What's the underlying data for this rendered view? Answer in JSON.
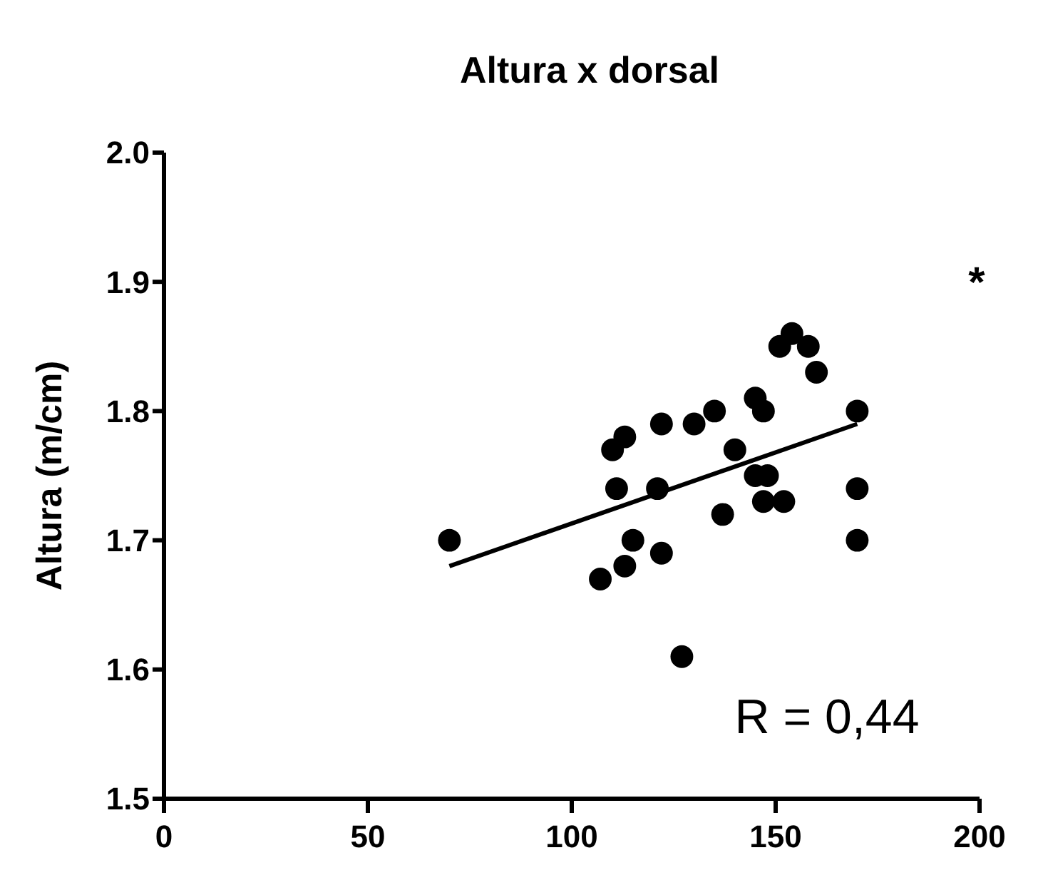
{
  "chart_data": {
    "type": "scatter",
    "title": "Altura x dorsal",
    "ylabel": "Altura (m/cm)",
    "xlim": [
      0,
      200
    ],
    "xticks": [
      0,
      50,
      100,
      150,
      200
    ],
    "ylim": [
      1.5,
      2.0
    ],
    "yticks": [
      {
        "value": 1.5,
        "label": "1.5"
      },
      1.6,
      1.7,
      1.8,
      1.9,
      {
        "value": 2.0,
        "label": "2.0"
      }
    ],
    "marker": "circle",
    "grid": false,
    "annotations": [
      "*",
      "R = 0,44"
    ],
    "series": [
      {
        "color": "#000000",
        "x": [
          70,
          107,
          113,
          115,
          122,
          111,
          121,
          110,
          113,
          122,
          130,
          135,
          140,
          137,
          127,
          145,
          147,
          145,
          148,
          147,
          152,
          151,
          154,
          158,
          160,
          170,
          170,
          170
        ],
        "values": [
          1.7,
          1.67,
          1.68,
          1.7,
          1.69,
          1.74,
          1.74,
          1.77,
          1.78,
          1.79,
          1.79,
          1.8,
          1.77,
          1.72,
          1.61,
          1.81,
          1.8,
          1.75,
          1.75,
          1.73,
          1.73,
          1.85,
          1.86,
          1.85,
          1.83,
          1.8,
          1.74,
          1.7
        ]
      },
      {
        "type": "line",
        "color": "#000000",
        "marker": "none",
        "x": [
          70,
          170
        ],
        "values": [
          1.68,
          1.79
        ]
      }
    ]
  }
}
